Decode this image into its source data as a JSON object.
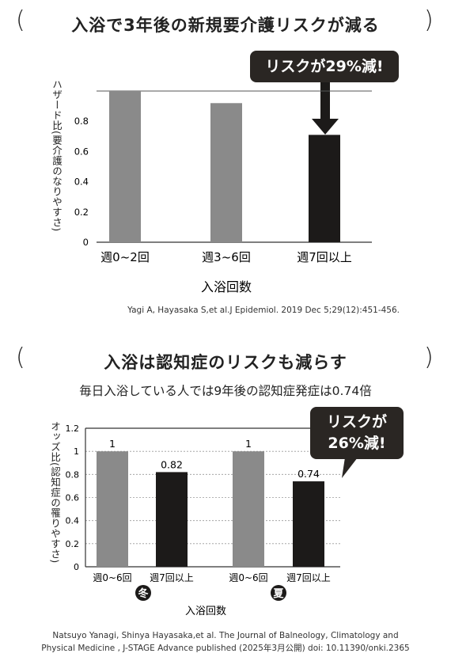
{
  "section1": {
    "open_paren": "(",
    "close_paren": ")",
    "title": "入浴で3年後の新規要介護リスクが減る",
    "callout": "リスクが29%減!",
    "citation": "Yagi A, Hayasaka S,et al.J Epidemiol. 2019 Dec 5;29(12):451-456."
  },
  "section2": {
    "open_paren": "(",
    "close_paren": ")",
    "title": "入浴は認知症のリスクも減らす",
    "subtitle": "毎日入浴している人では9年後の認知症発症は0.74倍",
    "callout_line1": "リスクが",
    "callout_line2": "26%減!",
    "citation_line1": "Natsuyo Yanagi, Shinya Hayasaka,et al. The Journal of Balneology, Climatology and",
    "citation_line2": "Physical Medicine , J-STAGE Advance published (2025年3月公開) doi: 10.11390/onki.2365"
  },
  "colors": {
    "gray_bar": "#8a8a8a",
    "black_bar": "#1c1a19",
    "callout_bg": "#2a2623"
  },
  "chart_data": [
    {
      "type": "bar",
      "categories": [
        "週0~2回",
        "週3~6回",
        "週7回以上"
      ],
      "values": [
        1.0,
        0.92,
        0.71
      ],
      "bar_colors": [
        "#8a8a8a",
        "#8a8a8a",
        "#1c1a19"
      ],
      "xlabel": "入浴回数",
      "ylabel": "ハザード比(要介護のなりやすさ)",
      "ylim": [
        0,
        1.0
      ],
      "yticks": [
        "0",
        "0.2",
        "0.4",
        "0.6",
        "0.8"
      ],
      "grid": false
    },
    {
      "type": "bar",
      "groups": [
        "冬",
        "夏"
      ],
      "categories": [
        "週0~6回",
        "週7回以上",
        "週0~6回",
        "週7回以上"
      ],
      "values": [
        1,
        0.82,
        1,
        0.74
      ],
      "data_labels": [
        "1",
        "0.82",
        "1",
        "0.74"
      ],
      "bar_colors": [
        "#8a8a8a",
        "#1c1a19",
        "#8a8a8a",
        "#1c1a19"
      ],
      "xlabel": "入浴回数",
      "ylabel": "オッズ比(認知症の罹りやすさ)",
      "ylim": [
        0,
        1.2
      ],
      "yticks": [
        "0",
        "0.2",
        "0.4",
        "0.6",
        "0.8",
        "1",
        "1.2"
      ],
      "grid": true
    }
  ]
}
